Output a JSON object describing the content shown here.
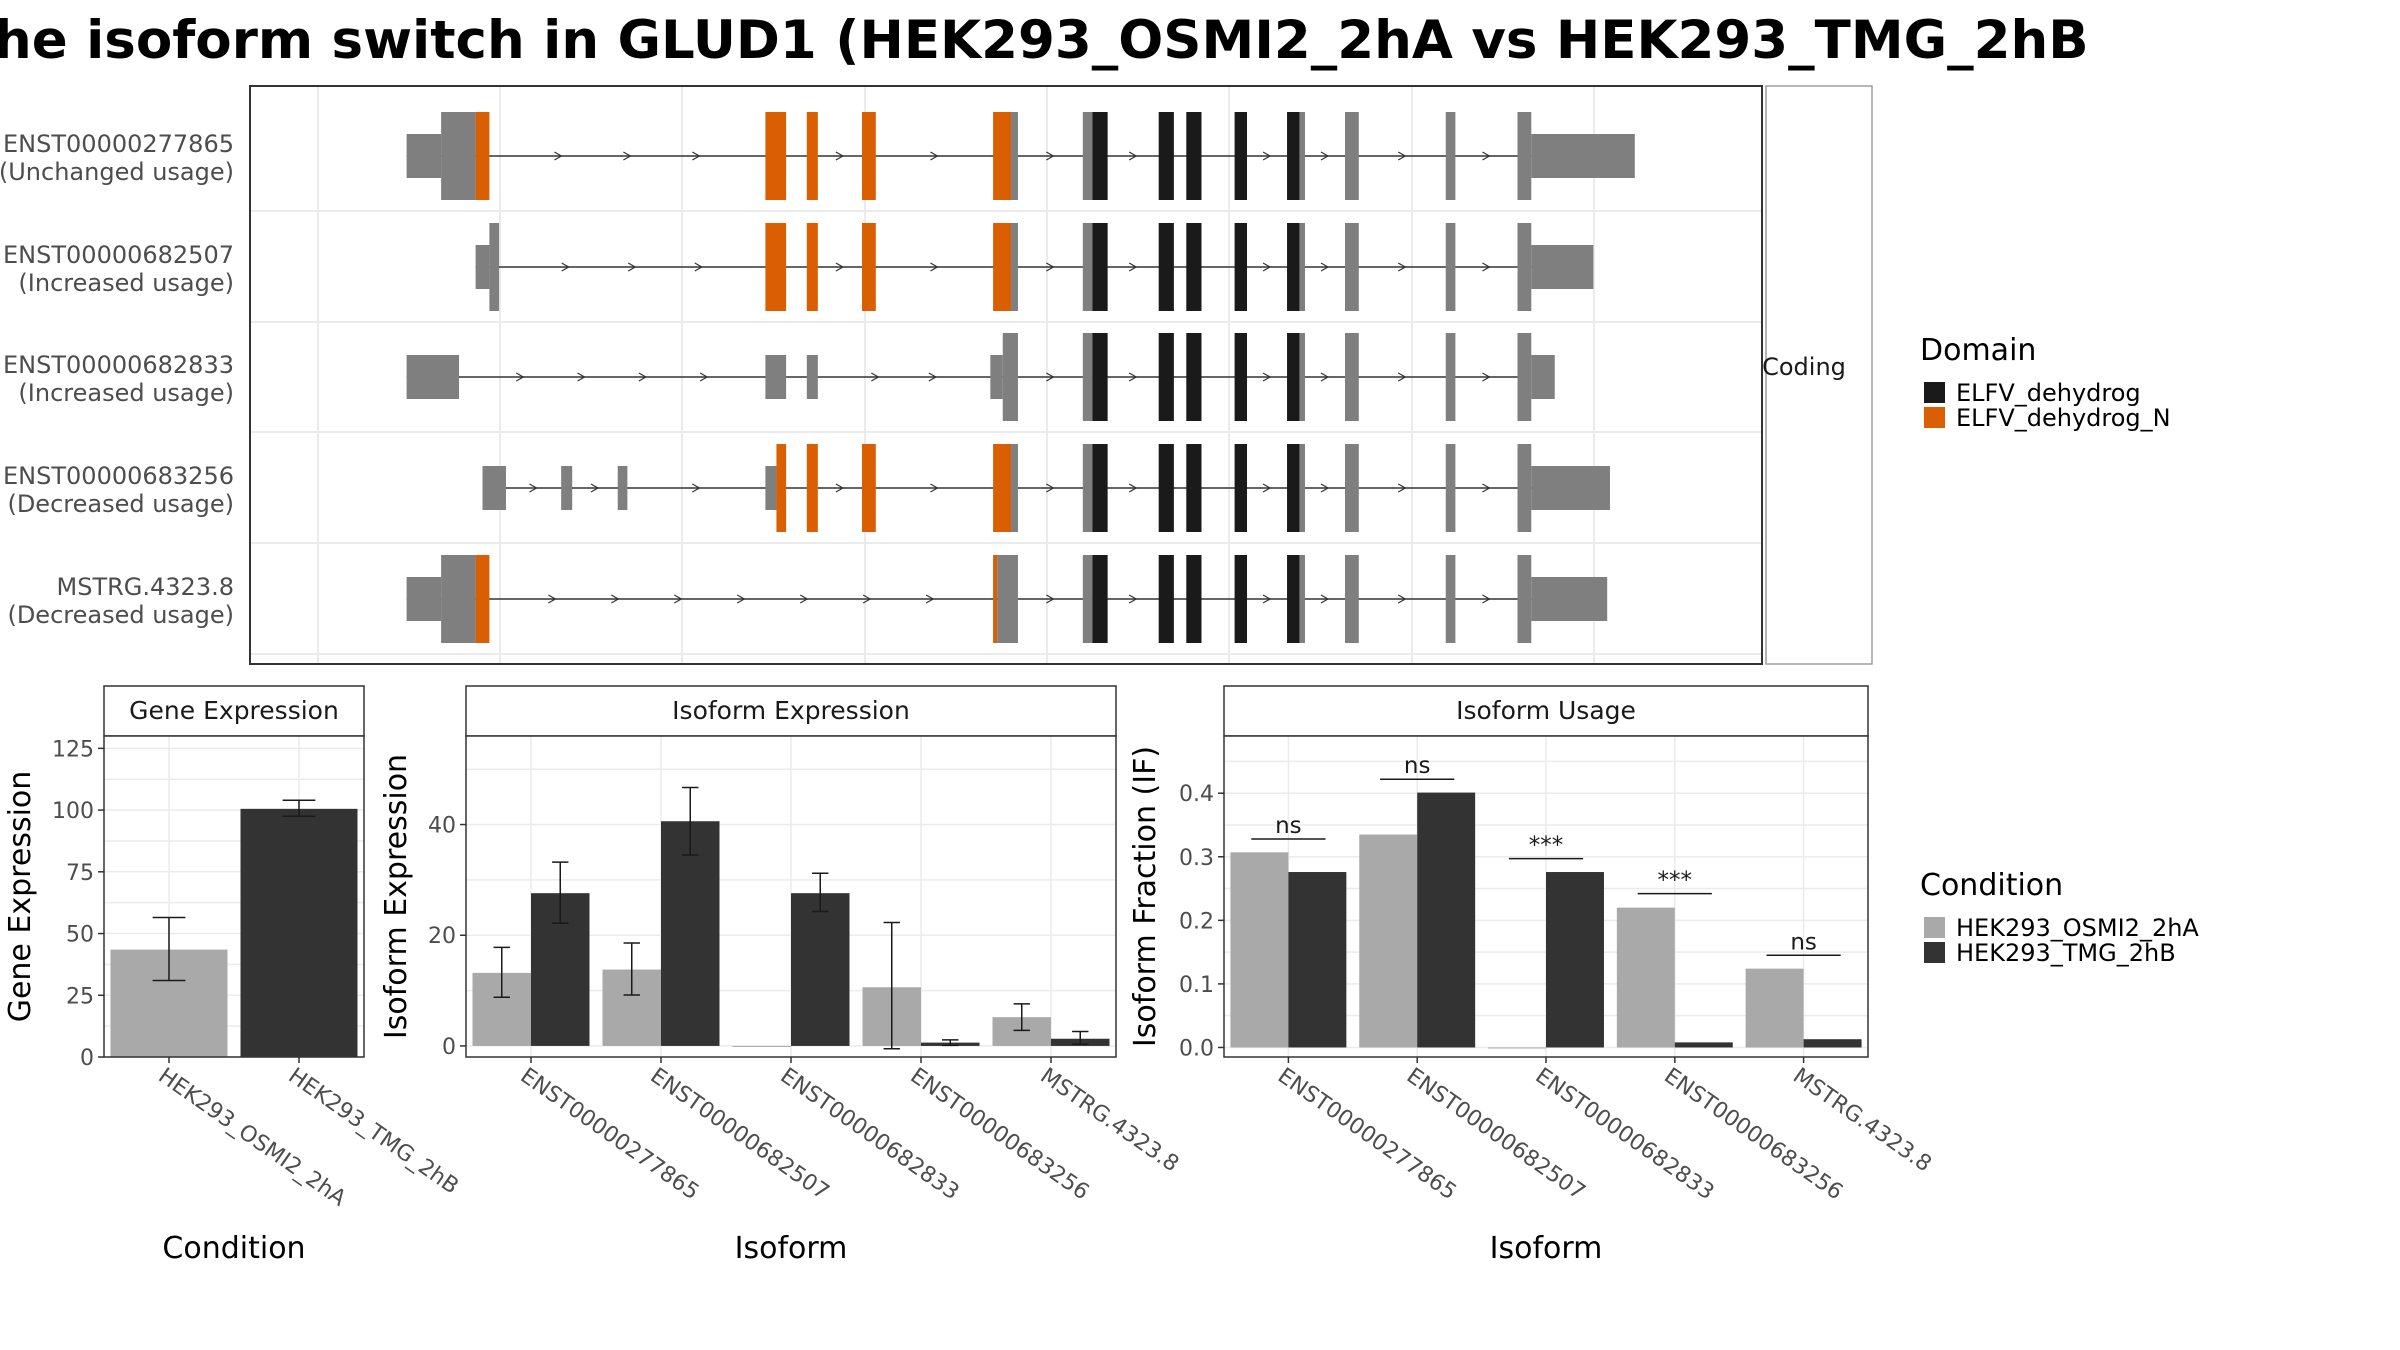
{
  "title": "he isoform switch in GLUD1 (HEK293_OSMI2_2hA vs HEK293_TMG_2hB",
  "colors": {
    "domain_dehydrog": "#1a1a1a",
    "domain_dehydrog_N": "#d95f02",
    "exon": "#7f7f7f",
    "cond_A": "#a9a9a9",
    "cond_B": "#333333",
    "panel_border": "#333333",
    "strip_border": "#9e9e9e",
    "grid": "#ebebeb"
  },
  "structure_plot": {
    "strip_label": "Coding",
    "legend": {
      "title": "Domain",
      "items": [
        {
          "label": "ELFV_dehydrog",
          "color": "#1a1a1a"
        },
        {
          "label": "ELFV_dehydrog_N",
          "color": "#d95f02"
        }
      ]
    },
    "isoforms": [
      {
        "id": "ENST00000277865",
        "status": "(Unchanged usage)",
        "start": 7,
        "end": 92,
        "exons": [
          {
            "s": 7,
            "e": 9.5,
            "type": "utr"
          },
          {
            "s": 9.5,
            "e": 12,
            "type": "cds"
          },
          {
            "s": 12,
            "e": 13,
            "type": "cds",
            "domain": "N"
          },
          {
            "s": 33,
            "e": 34.5,
            "type": "cds",
            "domain": "N"
          },
          {
            "s": 36,
            "e": 36.8,
            "type": "cds",
            "domain": "N"
          },
          {
            "s": 40,
            "e": 41,
            "type": "cds",
            "domain": "N"
          },
          {
            "s": 49.5,
            "e": 50.8,
            "type": "cds",
            "domain": "N"
          },
          {
            "s": 50.8,
            "e": 51.3,
            "type": "cds"
          },
          {
            "s": 56,
            "e": 56.7,
            "type": "cds"
          },
          {
            "s": 56.7,
            "e": 57.8,
            "type": "cds",
            "domain": "D"
          },
          {
            "s": 61.5,
            "e": 62.6,
            "type": "cds",
            "domain": "D"
          },
          {
            "s": 63.5,
            "e": 64.6,
            "type": "cds",
            "domain": "D"
          },
          {
            "s": 67,
            "e": 67.9,
            "type": "cds",
            "domain": "D"
          },
          {
            "s": 70.8,
            "e": 71.7,
            "type": "cds",
            "domain": "D"
          },
          {
            "s": 71.7,
            "e": 72.1,
            "type": "cds"
          },
          {
            "s": 75,
            "e": 76,
            "type": "cds"
          },
          {
            "s": 82.3,
            "e": 83,
            "type": "cds"
          },
          {
            "s": 87.5,
            "e": 88.5,
            "type": "cds"
          },
          {
            "s": 88.5,
            "e": 96,
            "type": "utr"
          }
        ]
      },
      {
        "id": "ENST00000682507",
        "status": "(Increased usage)",
        "start": 12,
        "end": 92,
        "exons": [
          {
            "s": 12,
            "e": 13,
            "type": "utr"
          },
          {
            "s": 13,
            "e": 13.7,
            "type": "cds"
          },
          {
            "s": 33,
            "e": 34.5,
            "type": "cds",
            "domain": "N"
          },
          {
            "s": 36,
            "e": 36.8,
            "type": "cds",
            "domain": "N"
          },
          {
            "s": 40,
            "e": 41,
            "type": "cds",
            "domain": "N"
          },
          {
            "s": 49.5,
            "e": 50.8,
            "type": "cds",
            "domain": "N"
          },
          {
            "s": 50.8,
            "e": 51.3,
            "type": "cds"
          },
          {
            "s": 56,
            "e": 56.7,
            "type": "cds"
          },
          {
            "s": 56.7,
            "e": 57.8,
            "type": "cds",
            "domain": "D"
          },
          {
            "s": 61.5,
            "e": 62.6,
            "type": "cds",
            "domain": "D"
          },
          {
            "s": 63.5,
            "e": 64.6,
            "type": "cds",
            "domain": "D"
          },
          {
            "s": 67,
            "e": 67.9,
            "type": "cds",
            "domain": "D"
          },
          {
            "s": 70.8,
            "e": 71.7,
            "type": "cds",
            "domain": "D"
          },
          {
            "s": 71.7,
            "e": 72.1,
            "type": "cds"
          },
          {
            "s": 75,
            "e": 76,
            "type": "cds"
          },
          {
            "s": 82.3,
            "e": 83,
            "type": "cds"
          },
          {
            "s": 87.5,
            "e": 88.5,
            "type": "cds"
          },
          {
            "s": 88.5,
            "e": 93,
            "type": "utr"
          }
        ]
      },
      {
        "id": "ENST00000682833",
        "status": "(Increased usage)",
        "start": 7,
        "end": 88,
        "exons": [
          {
            "s": 7,
            "e": 10.8,
            "type": "utr"
          },
          {
            "s": 33,
            "e": 34.5,
            "type": "utr"
          },
          {
            "s": 36,
            "e": 36.8,
            "type": "utr"
          },
          {
            "s": 49.3,
            "e": 50.2,
            "type": "utr"
          },
          {
            "s": 50.2,
            "e": 51.3,
            "type": "cds"
          },
          {
            "s": 56,
            "e": 56.7,
            "type": "cds"
          },
          {
            "s": 56.7,
            "e": 57.8,
            "type": "cds",
            "domain": "D"
          },
          {
            "s": 61.5,
            "e": 62.6,
            "type": "cds",
            "domain": "D"
          },
          {
            "s": 63.5,
            "e": 64.6,
            "type": "cds",
            "domain": "D"
          },
          {
            "s": 67,
            "e": 67.9,
            "type": "cds",
            "domain": "D"
          },
          {
            "s": 70.8,
            "e": 71.7,
            "type": "cds",
            "domain": "D"
          },
          {
            "s": 71.7,
            "e": 72.1,
            "type": "cds"
          },
          {
            "s": 75,
            "e": 76,
            "type": "cds"
          },
          {
            "s": 82.3,
            "e": 83,
            "type": "cds"
          },
          {
            "s": 87.5,
            "e": 88.5,
            "type": "cds"
          },
          {
            "s": 88.5,
            "e": 90.2,
            "type": "utr"
          }
        ]
      },
      {
        "id": "ENST00000683256",
        "status": "(Decreased usage)",
        "start": 12.5,
        "end": 92,
        "exons": [
          {
            "s": 12.5,
            "e": 14.2,
            "type": "utr"
          },
          {
            "s": 18.2,
            "e": 19,
            "type": "utr"
          },
          {
            "s": 22.3,
            "e": 23,
            "type": "utr"
          },
          {
            "s": 33,
            "e": 33.8,
            "type": "utr"
          },
          {
            "s": 33.8,
            "e": 34.5,
            "type": "cds",
            "domain": "N"
          },
          {
            "s": 36,
            "e": 36.8,
            "type": "cds",
            "domain": "N"
          },
          {
            "s": 40,
            "e": 41,
            "type": "cds",
            "domain": "N"
          },
          {
            "s": 49.5,
            "e": 50.8,
            "type": "cds",
            "domain": "N"
          },
          {
            "s": 50.8,
            "e": 51.3,
            "type": "cds"
          },
          {
            "s": 56,
            "e": 56.7,
            "type": "cds"
          },
          {
            "s": 56.7,
            "e": 57.8,
            "type": "cds",
            "domain": "D"
          },
          {
            "s": 61.5,
            "e": 62.6,
            "type": "cds",
            "domain": "D"
          },
          {
            "s": 63.5,
            "e": 64.6,
            "type": "cds",
            "domain": "D"
          },
          {
            "s": 67,
            "e": 67.9,
            "type": "cds",
            "domain": "D"
          },
          {
            "s": 70.8,
            "e": 71.7,
            "type": "cds",
            "domain": "D"
          },
          {
            "s": 71.7,
            "e": 72.1,
            "type": "cds"
          },
          {
            "s": 75,
            "e": 76,
            "type": "cds"
          },
          {
            "s": 82.3,
            "e": 83,
            "type": "cds"
          },
          {
            "s": 87.5,
            "e": 88.5,
            "type": "cds"
          },
          {
            "s": 88.5,
            "e": 94.2,
            "type": "utr"
          }
        ]
      },
      {
        "id": "MSTRG.4323.8",
        "status": "(Decreased usage)",
        "start": 7,
        "end": 92,
        "exons": [
          {
            "s": 7,
            "e": 9.5,
            "type": "utr"
          },
          {
            "s": 9.5,
            "e": 12,
            "type": "cds"
          },
          {
            "s": 12,
            "e": 13,
            "type": "cds",
            "domain": "N"
          },
          {
            "s": 49.5,
            "e": 49.8,
            "type": "cds",
            "domain": "N"
          },
          {
            "s": 49.8,
            "e": 51.3,
            "type": "cds"
          },
          {
            "s": 56,
            "e": 56.7,
            "type": "cds"
          },
          {
            "s": 56.7,
            "e": 57.8,
            "type": "cds",
            "domain": "D"
          },
          {
            "s": 61.5,
            "e": 62.6,
            "type": "cds",
            "domain": "D"
          },
          {
            "s": 63.5,
            "e": 64.6,
            "type": "cds",
            "domain": "D"
          },
          {
            "s": 67,
            "e": 67.9,
            "type": "cds",
            "domain": "D"
          },
          {
            "s": 70.8,
            "e": 71.7,
            "type": "cds",
            "domain": "D"
          },
          {
            "s": 71.7,
            "e": 72.1,
            "type": "cds"
          },
          {
            "s": 75,
            "e": 76,
            "type": "cds"
          },
          {
            "s": 82.3,
            "e": 83,
            "type": "cds"
          },
          {
            "s": 87.5,
            "e": 88.5,
            "type": "cds"
          },
          {
            "s": 88.5,
            "e": 94,
            "type": "utr"
          }
        ]
      }
    ]
  },
  "condition_legend": {
    "title": "Condition",
    "items": [
      {
        "label": "HEK293_OSMI2_2hA",
        "color": "#a9a9a9"
      },
      {
        "label": "HEK293_TMG_2hB",
        "color": "#333333"
      }
    ]
  },
  "chart_data": [
    {
      "type": "bar",
      "title": "Gene Expression",
      "xlabel": "Condition",
      "ylabel": "Gene Expression",
      "ylim": [
        0,
        130
      ],
      "yticks": [
        0,
        25,
        50,
        75,
        100,
        125
      ],
      "categories": [
        "HEK293_OSMI2_2hA",
        "HEK293_TMG_2hB"
      ],
      "values": [
        43.5,
        100.5
      ],
      "err_low": [
        31,
        97.5
      ],
      "err_high": [
        56.5,
        104
      ]
    },
    {
      "type": "bar",
      "title": "Isoform Expression",
      "xlabel": "Isoform",
      "ylabel": "Isoform Expression",
      "ylim": [
        -2,
        56
      ],
      "yticks": [
        0,
        20,
        40
      ],
      "categories": [
        "ENST00000277865",
        "ENST00000682507",
        "ENST00000682833",
        "ENST00000683256",
        "MSTRG.4323.8"
      ],
      "series": [
        {
          "name": "HEK293_OSMI2_2hA",
          "values": [
            13.2,
            13.8,
            0,
            10.6,
            5.2
          ],
          "err_low": [
            8.8,
            9.2,
            0,
            -0.5,
            2.8
          ],
          "err_high": [
            17.8,
            18.6,
            0,
            22.3,
            7.6
          ]
        },
        {
          "name": "HEK293_TMG_2hB",
          "values": [
            27.6,
            40.6,
            27.6,
            0.6,
            1.3
          ],
          "err_low": [
            22.2,
            34.5,
            24.3,
            0.1,
            0.3
          ],
          "err_high": [
            33.2,
            46.7,
            31.2,
            1.1,
            2.6
          ]
        }
      ]
    },
    {
      "type": "bar",
      "title": "Isoform Usage",
      "xlabel": "Isoform",
      "ylabel": "Isoform Fraction (IF)",
      "ylim": [
        -0.015,
        0.49
      ],
      "yticks": [
        0.0,
        0.1,
        0.2,
        0.3,
        0.4
      ],
      "ytick_labels": [
        "0.0",
        "0.1",
        "0.2",
        "0.3",
        "0.4"
      ],
      "categories": [
        "ENST00000277865",
        "ENST00000682507",
        "ENST00000682833",
        "ENST00000683256",
        "MSTRG.4323.8"
      ],
      "series": [
        {
          "name": "HEK293_OSMI2_2hA",
          "values": [
            0.307,
            0.335,
            0.0,
            0.22,
            0.124
          ]
        },
        {
          "name": "HEK293_TMG_2hB",
          "values": [
            0.276,
            0.401,
            0.276,
            0.008,
            0.013
          ]
        }
      ],
      "significance": [
        {
          "label": "ns",
          "level": 0.328
        },
        {
          "label": "ns",
          "level": 0.422
        },
        {
          "label": "***",
          "level": 0.297
        },
        {
          "label": "***",
          "level": 0.242
        },
        {
          "label": "ns",
          "level": 0.145
        }
      ]
    }
  ]
}
